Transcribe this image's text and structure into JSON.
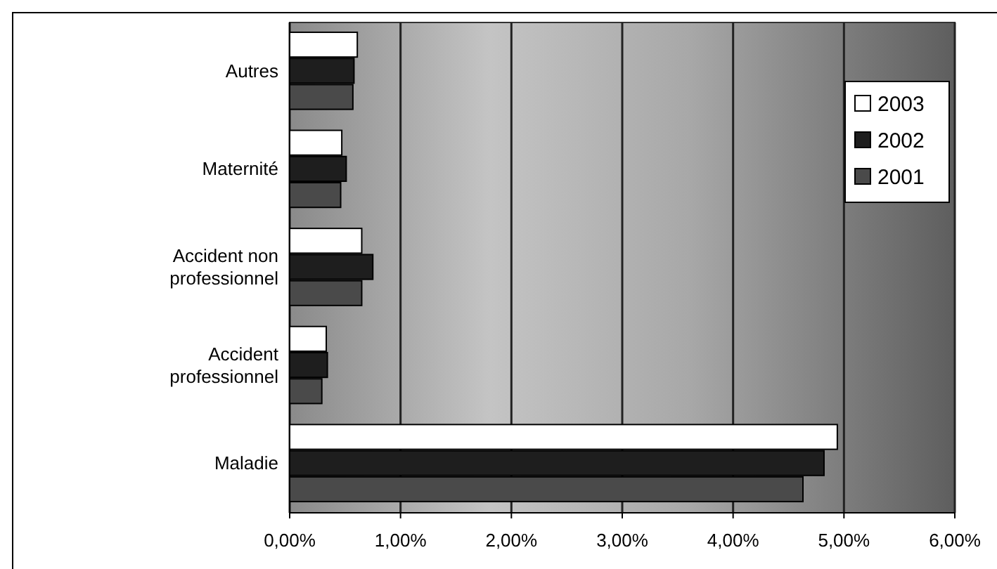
{
  "chart_data": {
    "type": "bar",
    "orientation": "horizontal",
    "categories": [
      "Autres",
      "Maternité",
      "Accident non professionnel",
      "Accident professionnel",
      "Maladie"
    ],
    "series": [
      {
        "name": "2003",
        "color": "#ffffff",
        "values": [
          0.61,
          0.47,
          0.65,
          0.33,
          4.94
        ]
      },
      {
        "name": "2002",
        "color": "#1e1e1e",
        "values": [
          0.58,
          0.51,
          0.75,
          0.34,
          4.82
        ]
      },
      {
        "name": "2001",
        "color": "#4a4a4a",
        "values": [
          0.57,
          0.46,
          0.65,
          0.29,
          4.63
        ]
      }
    ],
    "xlim": [
      0,
      6
    ],
    "xticks": [
      {
        "value": 0,
        "label": "0,00%"
      },
      {
        "value": 1,
        "label": "1,00%"
      },
      {
        "value": 2,
        "label": "2,00%"
      },
      {
        "value": 3,
        "label": "3,00%"
      },
      {
        "value": 4,
        "label": "4,00%"
      },
      {
        "value": 5,
        "label": "5,00%"
      },
      {
        "value": 6,
        "label": "6,00%"
      }
    ],
    "grid": "x",
    "legend": "top right"
  }
}
